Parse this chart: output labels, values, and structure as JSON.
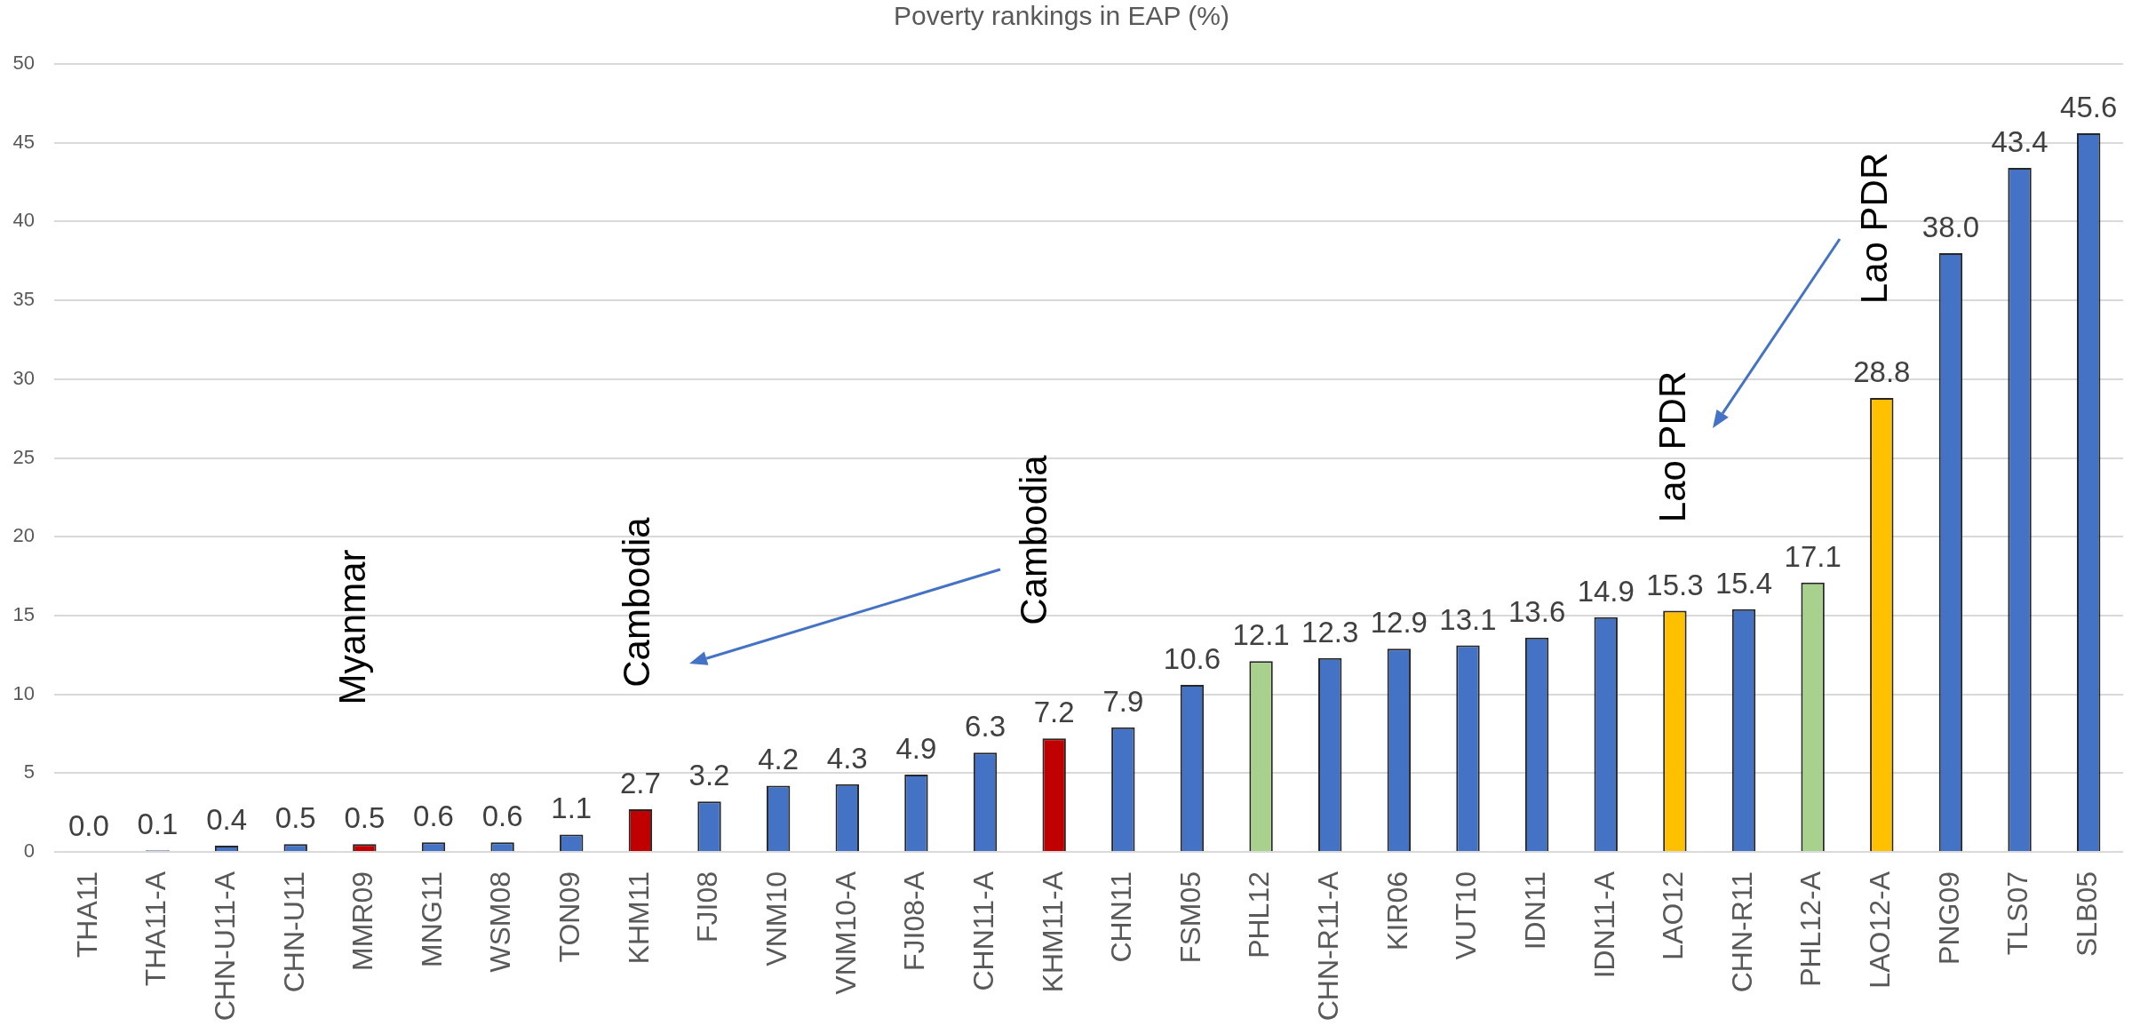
{
  "chart_data": {
    "type": "bar",
    "title": "Poverty rankings in EAP (%)",
    "categories": [
      "THA11",
      "THA11-A",
      "CHN-U11-A",
      "CHN-U11",
      "MMR09",
      "MNG11",
      "WSM08",
      "TON09",
      "KHM11",
      "FJI08",
      "VNM10",
      "VNM10-A",
      "FJI08-A",
      "CHN11-A",
      "KHM11-A",
      "CHN11",
      "FSM05",
      "PHL12",
      "CHN-R11-A",
      "KIR06",
      "VUT10",
      "IDN11",
      "IDN11-A",
      "LAO12",
      "CHN-R11",
      "PHL12-A",
      "LAO12-A",
      "PNG09",
      "TLS07",
      "SLB05"
    ],
    "values": [
      0.0,
      0.1,
      0.4,
      0.5,
      0.5,
      0.6,
      0.6,
      1.1,
      2.7,
      3.2,
      4.2,
      4.3,
      4.9,
      6.3,
      7.2,
      7.9,
      10.6,
      12.1,
      12.3,
      12.9,
      13.1,
      13.6,
      14.9,
      15.3,
      15.4,
      17.1,
      28.8,
      38.0,
      43.4,
      45.6
    ],
    "value_labels": [
      "0.0",
      "0.1",
      "0.4",
      "0.5",
      "0.5",
      "0.6",
      "0.6",
      "1.1",
      "2.7",
      "3.2",
      "4.2",
      "4.3",
      "4.9",
      "6.3",
      "7.2",
      "7.9",
      "10.6",
      "12.1",
      "12.3",
      "12.9",
      "13.1",
      "13.6",
      "14.9",
      "15.3",
      "15.4",
      "17.1",
      "28.8",
      "38.0",
      "43.4",
      "45.6"
    ],
    "colors": [
      "#4472c4",
      "#4472c4",
      "#4472c4",
      "#4472c4",
      "#c00000",
      "#4472c4",
      "#4472c4",
      "#4472c4",
      "#c00000",
      "#4472c4",
      "#4472c4",
      "#4472c4",
      "#4472c4",
      "#4472c4",
      "#c00000",
      "#4472c4",
      "#4472c4",
      "#a9d18e",
      "#4472c4",
      "#4472c4",
      "#4472c4",
      "#4472c4",
      "#4472c4",
      "#ffc000",
      "#4472c4",
      "#a9d18e",
      "#ffc000",
      "#4472c4",
      "#4472c4",
      "#4472c4"
    ],
    "ylim": [
      0,
      50
    ],
    "yticks": [
      0,
      5,
      10,
      15,
      20,
      25,
      30,
      35,
      40,
      45,
      50
    ],
    "grid": "y",
    "annotations": [
      "Myanmar",
      "Cambodia",
      "Cambodia",
      "Lao PDR",
      "Lao PDR"
    ]
  }
}
